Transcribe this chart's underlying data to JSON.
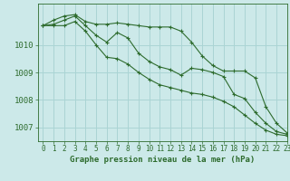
{
  "background_color": "#cce9e9",
  "grid_color": "#aad4d4",
  "line_color": "#2d6b2d",
  "title": "Graphe pression niveau de la mer (hPa)",
  "xlim": [
    -0.5,
    23
  ],
  "ylim": [
    1006.5,
    1011.5
  ],
  "yticks": [
    1007,
    1008,
    1009,
    1010
  ],
  "xticks": [
    0,
    1,
    2,
    3,
    4,
    5,
    6,
    7,
    8,
    9,
    10,
    11,
    12,
    13,
    14,
    15,
    16,
    17,
    18,
    19,
    20,
    21,
    22,
    23
  ],
  "series": [
    {
      "x": [
        0,
        1,
        2,
        3,
        4,
        5,
        6,
        7,
        8,
        9,
        10,
        11,
        12,
        13,
        14,
        15,
        16,
        17,
        18,
        19,
        20,
        21,
        22,
        23
      ],
      "y": [
        1010.7,
        1010.9,
        1011.05,
        1011.1,
        1010.85,
        1010.75,
        1010.75,
        1010.8,
        1010.75,
        1010.7,
        1010.65,
        1010.65,
        1010.65,
        1010.5,
        1010.1,
        1009.6,
        1009.25,
        1009.05,
        1009.05,
        1009.05,
        1008.8,
        1007.75,
        1007.15,
        1006.8
      ],
      "marker": "+"
    },
    {
      "x": [
        0,
        1,
        2,
        3,
        4,
        5,
        6,
        7,
        8,
        9,
        10,
        11,
        12,
        13,
        14,
        15,
        16,
        17,
        18,
        19,
        20,
        21,
        22,
        23
      ],
      "y": [
        1010.7,
        1010.75,
        1010.9,
        1011.05,
        1010.7,
        1010.35,
        1010.1,
        1010.45,
        1010.25,
        1009.7,
        1009.4,
        1009.2,
        1009.1,
        1008.9,
        1009.15,
        1009.1,
        1009.0,
        1008.85,
        1008.2,
        1008.05,
        1007.55,
        1007.15,
        1006.85,
        1006.75
      ],
      "marker": "+"
    },
    {
      "x": [
        0,
        1,
        2,
        3,
        4,
        5,
        6,
        7,
        8,
        9,
        10,
        11,
        12,
        13,
        14,
        15,
        16,
        17,
        18,
        19,
        20,
        21,
        22,
        23
      ],
      "y": [
        1010.7,
        1010.7,
        1010.7,
        1010.85,
        1010.5,
        1010.0,
        1009.55,
        1009.5,
        1009.3,
        1009.0,
        1008.75,
        1008.55,
        1008.45,
        1008.35,
        1008.25,
        1008.2,
        1008.1,
        1007.95,
        1007.75,
        1007.45,
        1007.15,
        1006.9,
        1006.75,
        1006.7
      ],
      "marker": "+"
    }
  ]
}
